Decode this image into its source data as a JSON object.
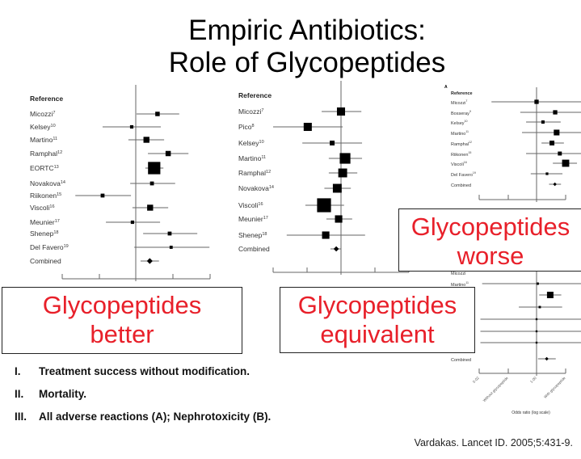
{
  "title": {
    "line1": "Empiric Antibiotics:",
    "line2": "Role of Glycopeptides"
  },
  "colors": {
    "accent_red": "#e8202a",
    "plot_ink": "#000000",
    "plot_line": "#777777"
  },
  "plots": [
    {
      "header": "Reference",
      "rows": [
        {
          "label": "Micozzi",
          "sup": "7",
          "est": 0.59,
          "lo": 0.02,
          "hi": 1.18,
          "weight": 1
        },
        {
          "label": "Kelsey",
          "sup": "10",
          "est": -0.11,
          "lo": -0.9,
          "hi": 0.68,
          "weight": 0.5
        },
        {
          "label": "Martino",
          "sup": "11",
          "est": 0.29,
          "lo": -0.2,
          "hi": 0.77,
          "weight": 2
        },
        {
          "label": "Ramphal",
          "sup": "12",
          "est": 0.88,
          "lo": 0.33,
          "hi": 1.43,
          "weight": 1.5
        },
        {
          "label": "EORTC",
          "sup": "13",
          "est": 0.5,
          "lo": 0.26,
          "hi": 0.75,
          "weight": 10
        },
        {
          "label": "Novakova",
          "sup": "14",
          "est": 0.44,
          "lo": -0.15,
          "hi": 1.07,
          "weight": 0.7
        },
        {
          "label": "Riikonen",
          "sup": "15",
          "est": -0.9,
          "lo": -1.64,
          "hi": -0.13,
          "weight": 0.7
        },
        {
          "label": "Viscoli",
          "sup": "16",
          "est": 0.39,
          "lo": -0.09,
          "hi": 0.88,
          "weight": 2
        },
        {
          "label": "Meunier",
          "sup": "17",
          "est": -0.09,
          "lo": -0.81,
          "hi": 0.66,
          "weight": 0.5
        },
        {
          "label": "Shenep",
          "sup": "18",
          "est": 0.92,
          "lo": 0.2,
          "hi": 1.67,
          "weight": 0.7
        },
        {
          "label": "Del Favero",
          "sup": "19",
          "est": 0.96,
          "lo": -0.04,
          "hi": 2.0,
          "weight": 0.4
        },
        {
          "label": "Combined",
          "sup": "",
          "est": 0.38,
          "lo": 0.13,
          "hi": 0.63,
          "combined": true
        }
      ]
    },
    {
      "header": "Reference",
      "rows": [
        {
          "label": "Micozzi",
          "sup": "7",
          "est": 0.0,
          "lo": -0.57,
          "hi": 0.6,
          "weight": 5
        },
        {
          "label": "Pico",
          "sup": "8",
          "est": -0.98,
          "lo": -2.0,
          "hi": 0.05,
          "weight": 5
        },
        {
          "label": "Kelsey",
          "sup": "10",
          "est": -0.26,
          "lo": -1.14,
          "hi": 0.62,
          "weight": 1.5
        },
        {
          "label": "Martino",
          "sup": "11",
          "est": 0.12,
          "lo": -0.36,
          "hi": 0.62,
          "weight": 9
        },
        {
          "label": "Ramphal",
          "sup": "12",
          "est": 0.05,
          "lo": -0.36,
          "hi": 0.48,
          "weight": 6
        },
        {
          "label": "Novakova",
          "sup": "14",
          "est": -0.11,
          "lo": -0.49,
          "hi": 0.29,
          "weight": 6
        },
        {
          "label": "Viscoli",
          "sup": "16",
          "est": -0.5,
          "lo": -1.05,
          "hi": 0.09,
          "weight": 16
        },
        {
          "label": "Meunier",
          "sup": "17",
          "est": -0.07,
          "lo": -0.43,
          "hi": 0.33,
          "weight": 4
        },
        {
          "label": "Shenep",
          "sup": "18",
          "est": -0.45,
          "lo": -1.6,
          "hi": 0.71,
          "weight": 4
        },
        {
          "label": "Combined",
          "sup": "",
          "est": -0.14,
          "lo": -0.31,
          "hi": 0.0,
          "combined": true
        }
      ]
    },
    {
      "panel": "A",
      "header": "Reference",
      "rows": [
        {
          "label": "Micozzi",
          "sup": "7",
          "est": 0.0,
          "lo": -1.55,
          "hi": 1.6,
          "weight": 3
        },
        {
          "label": "Bosseray",
          "sup": "9",
          "est": 0.64,
          "lo": -0.56,
          "hi": 1.6,
          "weight": 3
        },
        {
          "label": "Kelsey",
          "sup": "10",
          "est": 0.22,
          "lo": -0.36,
          "hi": 0.83,
          "weight": 1.5
        },
        {
          "label": "Martino",
          "sup": "11",
          "est": 0.69,
          "lo": -0.5,
          "hi": 1.6,
          "weight": 6
        },
        {
          "label": "Ramphal",
          "sup": "12",
          "est": 0.53,
          "lo": 0.17,
          "hi": 0.94,
          "weight": 4
        },
        {
          "label": "Riikonen",
          "sup": "15",
          "est": 0.8,
          "lo": -0.36,
          "hi": 1.6,
          "weight": 2.5
        },
        {
          "label": "Viscoli",
          "sup": "16",
          "est": 1.0,
          "lo": 0.56,
          "hi": 1.39,
          "weight": 10
        },
        {
          "label": "Del Favero",
          "sup": "19",
          "est": 0.36,
          "lo": -0.2,
          "hi": 0.89,
          "weight": 0.8
        },
        {
          "label": "Combined",
          "sup": "",
          "est": 0.63,
          "lo": 0.43,
          "hi": 0.84,
          "combined": true
        }
      ]
    },
    {
      "rows": [
        {
          "label": "Micozzi",
          "sup": "",
          "est": null,
          "lo": null,
          "hi": null
        },
        {
          "label": "Martino",
          "sup": "11",
          "est": 0.04,
          "lo": -1.87,
          "hi": 1.6,
          "weight": 0.6
        },
        {
          "label": "",
          "sup": "",
          "est": 0.47,
          "lo": 0.09,
          "hi": 0.85,
          "weight": 8
        },
        {
          "label": "",
          "sup": "",
          "est": 0.11,
          "lo": -0.61,
          "hi": 0.88,
          "weight": 0.6
        },
        {
          "label": "",
          "sup": "",
          "est": 0.0,
          "lo": -1.93,
          "hi": 1.6,
          "weight": 0.3
        },
        {
          "label": "",
          "sup": "",
          "est": 0.0,
          "lo": -1.93,
          "hi": 1.6,
          "weight": 0.3
        },
        {
          "label": "",
          "sup": "",
          "est": 0.0,
          "lo": -1.93,
          "hi": 1.6,
          "weight": 0.3
        },
        {
          "label": "Combined",
          "sup": "",
          "est": 0.35,
          "lo": 0.05,
          "hi": 0.66,
          "combined": true
        }
      ],
      "tick_labels": [
        "0.02",
        "Without glycopeptide",
        "1.00",
        "With glycopeptide"
      ],
      "xlabel": "Odds ratio (log scale)"
    }
  ],
  "callouts": {
    "better": {
      "line1": "Glycopeptides",
      "line2": "better"
    },
    "equivalent": {
      "line1": "Glycopeptides",
      "line2": "equivalent"
    },
    "worse": {
      "line1": "Glycopeptides",
      "line2": "worse"
    }
  },
  "outcomes": [
    {
      "numeral": "I.",
      "text": "Treatment success without modification."
    },
    {
      "numeral": "II.",
      "text": "Mortality."
    },
    {
      "numeral": "III.",
      "text": "All adverse reactions (A); Nephrotoxicity (B)."
    }
  ],
  "citation": "Vardakas. Lancet ID. 2005;5:431-9."
}
